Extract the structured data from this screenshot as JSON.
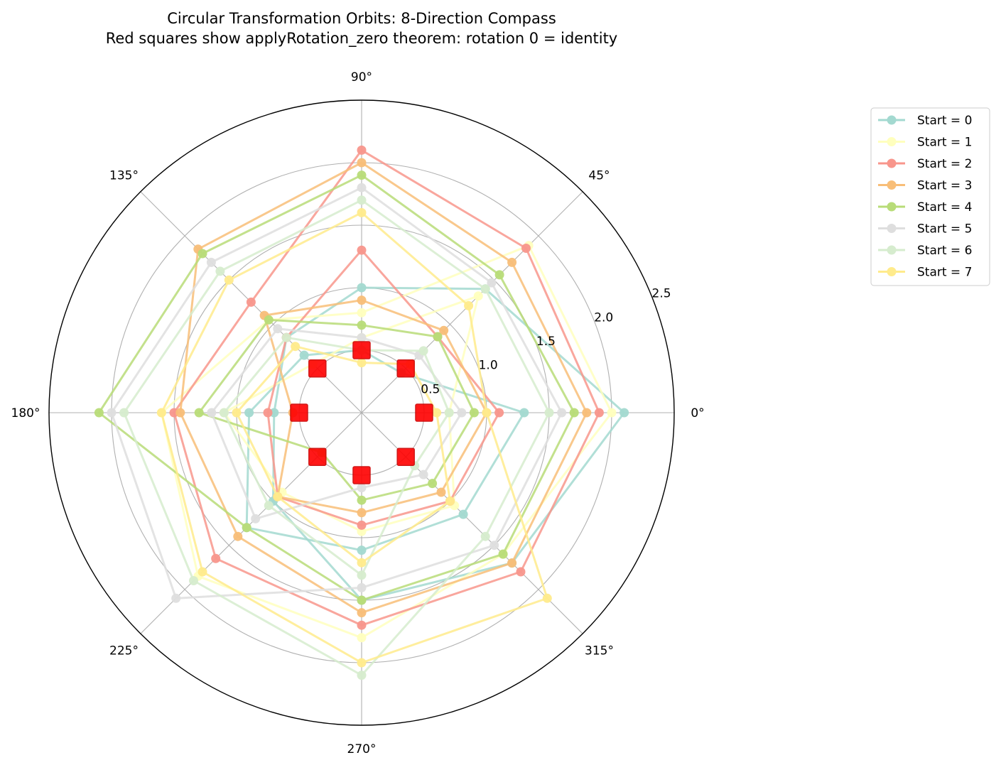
{
  "chart_data": {
    "type": "polar-line",
    "title": [
      "Circular Transformation Orbits: 8-Direction Compass",
      "Red squares show applyRotation_zero theorem: rotation 0 = identity"
    ],
    "angles_deg": [
      0,
      45,
      90,
      135,
      180,
      225,
      270,
      315
    ],
    "angle_tick_labels": [
      "0°",
      "45°",
      "90°",
      "135°",
      "180°",
      "225°",
      "270°",
      "315°"
    ],
    "radial_ticks": [
      0.5,
      1.0,
      1.5,
      2.0,
      2.5
    ],
    "radial_tick_labels": [
      "0.5",
      "1.0",
      "1.5",
      "2.0",
      "2.5"
    ],
    "rlim": [
      0,
      2.5
    ],
    "radial_label_angle_deg": 22.5,
    "grid": true,
    "legend_position": "outside-right",
    "series": [
      {
        "name": "Start = 0",
        "color": "#a3d9d0",
        "orbits": [
          [
            2.1,
            1.4,
            1.0,
            0.85,
            0.7,
            1.0,
            1.5,
            1.7
          ],
          [
            1.3,
            0.45,
            0.5,
            0.65,
            0.9,
            1.3,
            1.1,
            1.15
          ]
        ]
      },
      {
        "name": "Start = 1",
        "color": "#ffffbe",
        "orbits": [
          [
            2.0,
            1.89,
            0.8,
            1.05,
            1.6,
            1.85,
            1.8,
            1.6
          ],
          [
            0.7,
            1.32,
            0.6,
            0.55,
            1.1,
            0.9,
            0.95,
            1.05
          ]
        ]
      },
      {
        "name": "Start = 2",
        "color": "#f8968c",
        "orbits": [
          [
            1.9,
            1.86,
            2.1,
            1.25,
            1.5,
            1.65,
            1.7,
            1.8
          ],
          [
            1.1,
            0.86,
            1.3,
            0.85,
            0.75,
            0.95,
            0.9,
            1.0
          ]
        ]
      },
      {
        "name": "Start = 3",
        "color": "#f8be78",
        "orbits": [
          [
            1.8,
            1.7,
            2.0,
            1.85,
            1.45,
            1.4,
            1.6,
            1.7
          ],
          [
            1.0,
            0.93,
            0.9,
            1.1,
            0.55,
            0.95,
            0.8,
            0.9
          ]
        ]
      },
      {
        "name": "Start = 4",
        "color": "#b8dc78",
        "orbits": [
          [
            1.7,
            1.56,
            1.9,
            1.8,
            2.1,
            1.3,
            1.5,
            1.6
          ],
          [
            0.9,
            0.86,
            0.7,
            1.05,
            1.3,
            0.45,
            0.7,
            0.8
          ]
        ]
      },
      {
        "name": "Start = 5",
        "color": "#dedede",
        "orbits": [
          [
            1.6,
            1.47,
            1.8,
            1.7,
            2.0,
            2.1,
            1.4,
            1.5
          ],
          [
            0.8,
            0.65,
            0.6,
            0.95,
            1.2,
            1.2,
            0.6,
            0.7
          ]
        ]
      },
      {
        "name": "Start = 6",
        "color": "#d6ecce",
        "orbits": [
          [
            1.5,
            1.4,
            1.7,
            1.6,
            1.9,
            1.9,
            2.1,
            1.4
          ],
          [
            0.7,
            0.7,
            0.5,
            0.85,
            1.1,
            1.05,
            1.3,
            0.6
          ]
        ]
      },
      {
        "name": "Start = 7",
        "color": "#ffeb8c",
        "orbits": [
          [
            1.0,
            1.21,
            1.6,
            1.5,
            1.6,
            1.8,
            2.0,
            2.1
          ],
          [
            0.6,
            0.55,
            0.4,
            0.75,
            1.0,
            0.95,
            1.2,
            1.0
          ]
        ]
      }
    ],
    "identity_markers": {
      "marker": "square",
      "color": "#ff0000",
      "r": [
        0.5,
        0.5,
        0.5,
        0.5,
        0.5,
        0.5,
        0.5,
        0.5
      ],
      "angles_deg": [
        0,
        45,
        90,
        135,
        180,
        225,
        270,
        315
      ]
    }
  }
}
